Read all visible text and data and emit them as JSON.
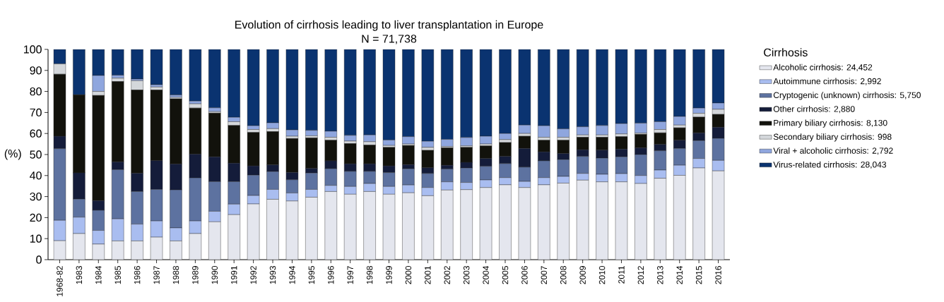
{
  "chart_data": {
    "type": "bar",
    "stacked": true,
    "title": "Evolution of cirrhosis leading to liver transplantation in Europe",
    "subtitle": "N = 71,738",
    "ylabel": "(%)",
    "legend_title": "Cirrhosis",
    "legend": "right",
    "categories": [
      "1968-82",
      "1983",
      "1984",
      "1985",
      "1986",
      "1987",
      "1988",
      "1989",
      "1990",
      "1991",
      "1992",
      "1993",
      "1994",
      "1995",
      "1996",
      "1997",
      "1998",
      "1999",
      "2000",
      "2001",
      "2002",
      "2003",
      "2004",
      "2005",
      "2006",
      "2007",
      "2008",
      "2009",
      "2010",
      "2011",
      "2012",
      "2013",
      "2014",
      "2015",
      "2016"
    ],
    "ylim": [
      0,
      100
    ],
    "yticks": [
      0,
      10,
      20,
      30,
      40,
      50,
      60,
      70,
      80,
      90,
      100
    ],
    "series": [
      {
        "name": "Alcoholic cirrhosis: 24,452",
        "color": "#e4e6ee",
        "values": [
          9,
          12.4,
          7.4,
          8.9,
          8.9,
          10.7,
          8.9,
          12.4,
          18,
          21.4,
          26.5,
          28.7,
          27.9,
          29.7,
          32.4,
          31.1,
          32.4,
          31.1,
          31.8,
          30.4,
          33.1,
          33.3,
          34.3,
          35.6,
          34.3,
          35.6,
          36.4,
          37.8,
          37,
          37,
          36.2,
          38.7,
          40.1,
          43.6,
          42.2
        ]
      },
      {
        "name": "Autoimmune cirrhosis: 2,992",
        "color": "#a9bdf0",
        "values": [
          9.7,
          7.8,
          6.5,
          10.5,
          8,
          7.7,
          6.2,
          6,
          5,
          5,
          4,
          4.7,
          3.8,
          3.7,
          2.9,
          3.7,
          3.8,
          3.7,
          3.7,
          3.9,
          3.9,
          3.4,
          3.6,
          3.4,
          2.9,
          3.4,
          3.2,
          3.2,
          3.6,
          3.9,
          3.8,
          3.9,
          4.8,
          4.5,
          5
        ]
      },
      {
        "name": "Cryptogenic (unknown) cirrhosis: 5,750",
        "color": "#5d72a0",
        "values": [
          34.1,
          8.6,
          9.6,
          23.4,
          15.5,
          15,
          18.1,
          20.5,
          14.1,
          10.7,
          9.7,
          8.5,
          6.3,
          7.8,
          8,
          7.2,
          5.8,
          6.6,
          7.7,
          6.7,
          6.1,
          6.9,
          6.5,
          6.7,
          6.8,
          8,
          8,
          8.1,
          7.7,
          8,
          10,
          9.2,
          8,
          8.5,
          10.5
        ]
      },
      {
        "name": "Other cirrhosis: 2,880",
        "color": "#141c3a",
        "values": [
          5.9,
          12.5,
          4.6,
          3.7,
          8.7,
          13.7,
          12.3,
          11.3,
          11.8,
          8.8,
          4.4,
          3.2,
          3.5,
          2.2,
          3.7,
          3.6,
          3.6,
          3.2,
          2,
          2.7,
          1.8,
          2.7,
          3.7,
          3.4,
          8.9,
          4.3,
          2.9,
          3.2,
          3.8,
          3.7,
          3.2,
          3,
          3.9,
          3.7,
          5.3
        ]
      },
      {
        "name": "Primary biliary cirrhosis: 8,130",
        "color": "#12120c",
        "values": [
          29.5,
          37.1,
          50,
          38.2,
          39.6,
          33.6,
          31,
          21.9,
          20.8,
          17.9,
          15.9,
          15.8,
          16.1,
          14.5,
          9.8,
          9.6,
          8.9,
          8.8,
          9.1,
          8.3,
          8.3,
          7.1,
          6,
          6.6,
          5.8,
          5.5,
          6.3,
          5.9,
          6.1,
          5.9,
          6.4,
          5.5,
          5.9,
          7.5,
          6.1
        ]
      },
      {
        "name": "Secondary biliary cirrhosis: 998",
        "color": "#d4d7db",
        "values": [
          4.9,
          0,
          1.9,
          1.6,
          4.4,
          1.4,
          0.7,
          2,
          0.7,
          1.8,
          1.4,
          1.4,
          1.1,
          1,
          1.4,
          1.2,
          1.6,
          0.9,
          0.7,
          1.4,
          0.6,
          0.7,
          0.9,
          1.4,
          1.3,
          1.4,
          1.4,
          1.1,
          1.1,
          1.3,
          0.6,
          1.6,
          1.3,
          1.8,
          2.4
        ]
      },
      {
        "name": "Viral + alcoholic cirrhosis: 2,792",
        "color": "#8fa6de",
        "values": [
          0,
          0,
          7.6,
          1.4,
          0.8,
          1.1,
          1.1,
          1.3,
          1.8,
          2.1,
          1.8,
          2.8,
          3,
          2.6,
          2.9,
          2.7,
          3.2,
          2.6,
          3.5,
          2.9,
          3.4,
          4,
          3.7,
          2.9,
          4,
          5.5,
          4,
          3.9,
          4.5,
          4.9,
          4.7,
          3.7,
          4.1,
          2.5,
          3
        ]
      },
      {
        "name": "Virus-related cirrhosis: 28,043",
        "color": "#0a3370",
        "values": [
          6.9,
          21.6,
          12.4,
          12.3,
          14.1,
          16.8,
          21.7,
          24.6,
          27.8,
          32.3,
          36.3,
          34.9,
          38.3,
          38.5,
          38.9,
          40.9,
          40.7,
          43.1,
          41.5,
          43.7,
          42.8,
          41.9,
          41.3,
          40,
          36,
          36.3,
          37.8,
          36.8,
          36.2,
          35.3,
          35.1,
          34.4,
          31.9,
          27.9,
          25.5
        ]
      }
    ]
  }
}
